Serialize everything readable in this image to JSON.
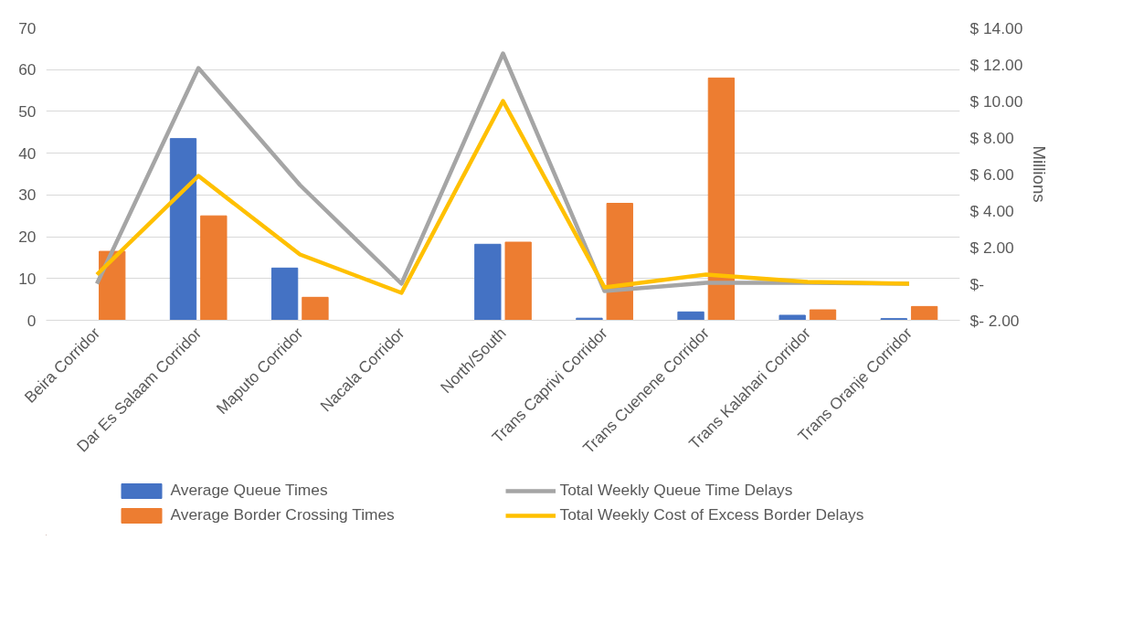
{
  "chart_data": {
    "type": "bar",
    "categories": [
      "Beira Corridor",
      "Dar Es Salaam Corridor",
      "Maputo Corridor",
      "Nacala Corridor",
      "North/South",
      "Trans Caprivi Corridor",
      "Trans Cuenene Corridor",
      "Trans Kalahari Corridor",
      "Trans Oranje Corridor"
    ],
    "series": [
      {
        "name": "Average Queue Times",
        "color": "#4472c4",
        "values": [
          0,
          43.5,
          12.5,
          0,
          18.2,
          0.5,
          2,
          1.2,
          0.4
        ]
      },
      {
        "name": "Average Border Crossing Times",
        "color": "#ed7d31",
        "values": [
          16.5,
          25,
          5.5,
          0,
          18.7,
          28,
          58,
          2.5,
          3.3
        ]
      },
      {
        "name": "Total Weekly Queue Time Delays",
        "type": "line",
        "axis": "y2",
        "color": "#a5a5a5",
        "values": [
          0,
          11.8,
          5.4,
          0,
          12.6,
          -0.4,
          0.05,
          0.05,
          0
        ]
      },
      {
        "name": "Total Weekly Cost of Excess Border Delays",
        "type": "line",
        "axis": "y2",
        "color": "#ffc000",
        "values": [
          0.5,
          5.9,
          1.6,
          -0.5,
          10,
          -0.2,
          0.5,
          0.1,
          0
        ]
      }
    ],
    "ylim": [
      0,
      70
    ],
    "yticks": [
      0,
      10,
      20,
      30,
      40,
      50,
      60,
      70
    ],
    "y2lim": [
      -2,
      14
    ],
    "y2ticks": [
      {
        "value": -2,
        "label": "$- 2.00"
      },
      {
        "value": 0,
        "label": "$-"
      },
      {
        "value": 2,
        "label": "$ 2.00"
      },
      {
        "value": 4,
        "label": "$ 4.00"
      },
      {
        "value": 6,
        "label": "$ 6.00"
      },
      {
        "value": 8,
        "label": "$ 8.00"
      },
      {
        "value": 10,
        "label": "$ 10.00"
      },
      {
        "value": 12,
        "label": "$ 12.00"
      },
      {
        "value": 14,
        "label": "$ 14.00"
      }
    ],
    "y2label": "Millions",
    "grid": "y",
    "legend": "bottom",
    "marker": "none",
    "line_style": "solid"
  }
}
